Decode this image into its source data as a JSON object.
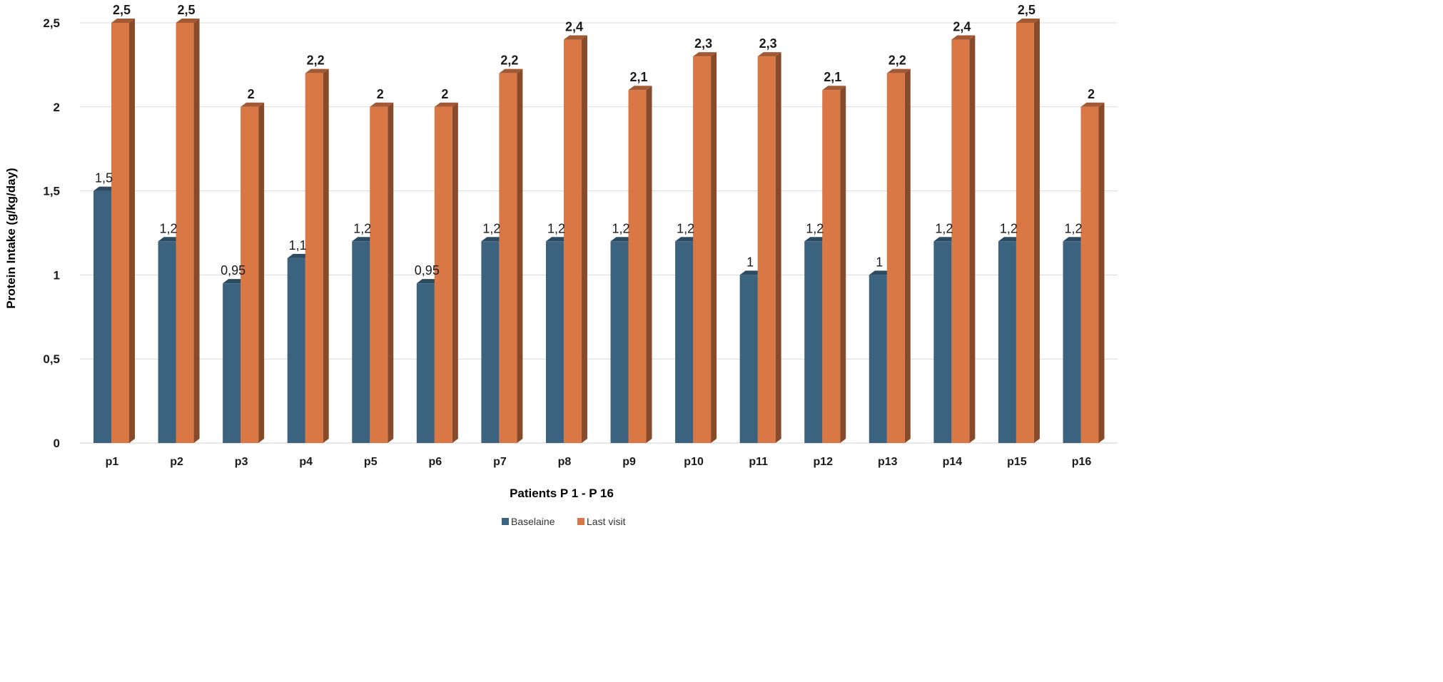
{
  "chart_data": {
    "type": "bar",
    "title": "",
    "xlabel": "Patients P 1 - P 16",
    "ylabel": "Protein Intake (g/kg/day)",
    "ylim": [
      0,
      2.5
    ],
    "yticks": [
      0,
      0.5,
      1,
      1.5,
      2,
      2.5
    ],
    "ytick_labels": [
      "0",
      "0,5",
      "1",
      "1,5",
      "2",
      "2,5"
    ],
    "grid": true,
    "legend_position": "bottom-center",
    "categories": [
      "p1",
      "p2",
      "p3",
      "p4",
      "p5",
      "p6",
      "p7",
      "p8",
      "p9",
      "p10",
      "p11",
      "p12",
      "p13",
      "p14",
      "p15",
      "p16"
    ],
    "series": [
      {
        "name": "Baselaine",
        "color": "#3b6380",
        "values": [
          1.5,
          1.2,
          0.95,
          1.1,
          1.2,
          0.95,
          1.2,
          1.2,
          1.2,
          1.2,
          1,
          1.2,
          1,
          1.2,
          1.2,
          1.2
        ],
        "labels": [
          "1,5",
          "1,2",
          "0,95",
          "1,1",
          "1,2",
          "0,95",
          "1,2",
          "1,2",
          "1,2",
          "1,2",
          "1",
          "1,2",
          "1",
          "1,2",
          "1,2",
          "1,2"
        ]
      },
      {
        "name": "Last visit",
        "color": "#d97745",
        "values": [
          2.5,
          2.5,
          2,
          2.2,
          2,
          2,
          2.2,
          2.4,
          2.1,
          2.3,
          2.3,
          2.1,
          2.2,
          2.4,
          2.5,
          2
        ],
        "labels": [
          "2,5",
          "2,5",
          "2",
          "2,2",
          "2",
          "2",
          "2,2",
          "2,4",
          "2,1",
          "2,3",
          "2,3",
          "2,1",
          "2,2",
          "2,4",
          "2,5",
          "2"
        ]
      }
    ]
  }
}
